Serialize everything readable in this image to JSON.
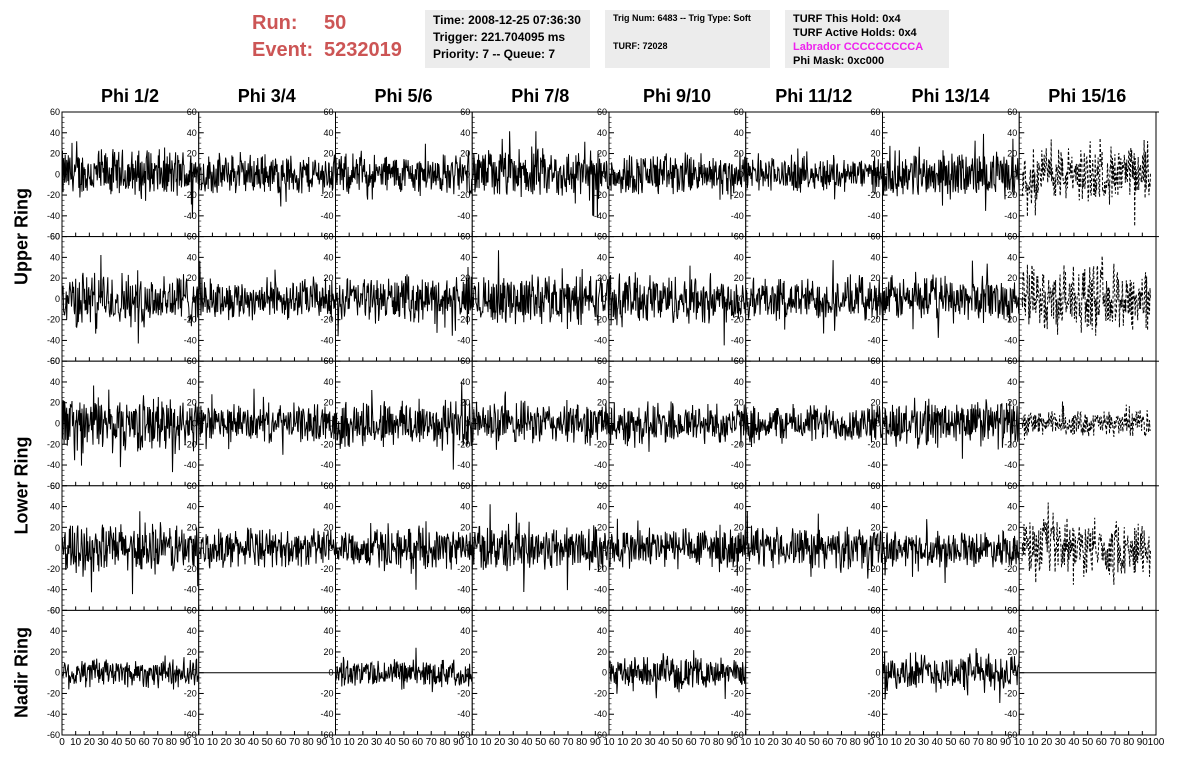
{
  "header": {
    "run_label": "Run:",
    "run_value": "50",
    "event_label": "Event:",
    "event_value": "5232019",
    "time_line": "Time: 2008-12-25 07:36:30",
    "trigger_line": "Trigger: 221.704095 ms",
    "priority_line": "Priority: 7 -- Queue: 7",
    "trig_num_line": "Trig Num: 6483 -- Trig Type: Soft",
    "turf_line": "TURF: 72028",
    "turf_hold_line": "TURF This Hold: 0x4",
    "turf_active_line": "TURF Active Holds: 0x4",
    "labrador_line": "Labrador CCCCCCCCCA",
    "phi_mask_line": "Phi Mask: 0xc000",
    "labrador_color": "#ee22ee",
    "run_color": "#cc5555"
  },
  "chart_data": {
    "type": "line",
    "columns": [
      "Phi 1/2",
      "Phi 3/4",
      "Phi 5/6",
      "Phi 7/8",
      "Phi 9/10",
      "Phi 11/12",
      "Phi 13/14",
      "Phi 15/16"
    ],
    "rows": [
      "Upper Ring",
      "Upper Ring",
      "Lower Ring",
      "Lower Ring",
      "Nadir Ring"
    ],
    "row_titles": [
      {
        "label": "Upper Ring",
        "spans_rows": [
          0,
          1
        ]
      },
      {
        "label": "Lower Ring",
        "spans_rows": [
          2,
          3
        ]
      },
      {
        "label": "Nadir Ring",
        "spans_rows": [
          4
        ]
      }
    ],
    "xlim": [
      0,
      100
    ],
    "ylim": [
      -60,
      60
    ],
    "x_ticks": [
      0,
      10,
      20,
      30,
      40,
      50,
      60,
      70,
      80,
      90,
      100
    ],
    "y_ticks": [
      -60,
      -40,
      -20,
      0,
      20,
      40,
      60
    ],
    "x_tick_labels_last_col": [
      "0",
      "10",
      "20",
      "30",
      "40",
      "50",
      "60",
      "70",
      "80",
      "90",
      "100"
    ],
    "x_tick_labels_other_cols": [
      "0",
      "10",
      "20",
      "30",
      "40",
      "50",
      "60",
      "70",
      "80",
      "90",
      "10"
    ],
    "cells": [
      [
        {
          "amp": 20,
          "style": "solid"
        },
        {
          "amp": 16,
          "style": "solid"
        },
        {
          "amp": 16,
          "style": "solid"
        },
        {
          "amp": 20,
          "style": "solid"
        },
        {
          "amp": 17,
          "style": "solid"
        },
        {
          "amp": 14,
          "style": "solid"
        },
        {
          "amp": 18,
          "style": "solid"
        },
        {
          "amp": 22,
          "style": "dashed"
        }
      ],
      [
        {
          "amp": 22,
          "style": "solid"
        },
        {
          "amp": 16,
          "style": "solid"
        },
        {
          "amp": 18,
          "style": "solid"
        },
        {
          "amp": 20,
          "style": "solid"
        },
        {
          "amp": 20,
          "style": "solid"
        },
        {
          "amp": 17,
          "style": "solid"
        },
        {
          "amp": 18,
          "style": "solid"
        },
        {
          "amp": 26,
          "style": "dashed"
        }
      ],
      [
        {
          "amp": 22,
          "style": "solid"
        },
        {
          "amp": 15,
          "style": "solid"
        },
        {
          "amp": 20,
          "style": "solid"
        },
        {
          "amp": 17,
          "style": "solid"
        },
        {
          "amp": 17,
          "style": "solid"
        },
        {
          "amp": 15,
          "style": "solid"
        },
        {
          "amp": 19,
          "style": "solid"
        },
        {
          "amp": 10,
          "style": "dashed"
        }
      ],
      [
        {
          "amp": 20,
          "style": "solid"
        },
        {
          "amp": 15,
          "style": "solid"
        },
        {
          "amp": 16,
          "style": "solid"
        },
        {
          "amp": 19,
          "style": "solid"
        },
        {
          "amp": 17,
          "style": "solid"
        },
        {
          "amp": 16,
          "style": "solid"
        },
        {
          "amp": 14,
          "style": "solid"
        },
        {
          "amp": 22,
          "style": "dashed"
        }
      ],
      [
        {
          "amp": 12,
          "style": "solid"
        },
        {
          "amp": 0,
          "style": "flat"
        },
        {
          "amp": 11,
          "style": "solid"
        },
        {
          "amp": 0,
          "style": "none"
        },
        {
          "amp": 12,
          "style": "solid"
        },
        {
          "amp": 0,
          "style": "none"
        },
        {
          "amp": 15,
          "style": "solid"
        },
        {
          "amp": 0,
          "style": "flat"
        }
      ]
    ]
  }
}
